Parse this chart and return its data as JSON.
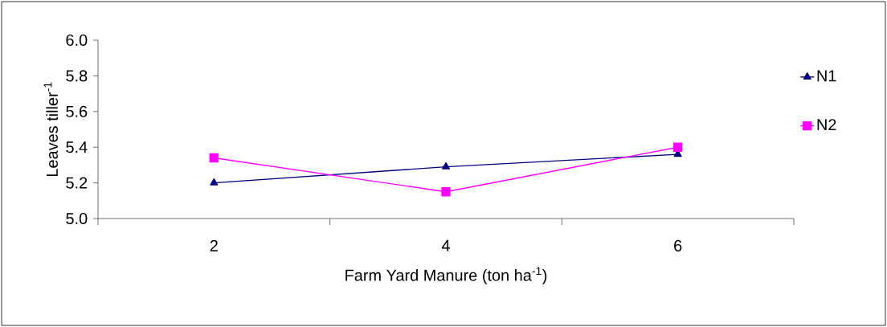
{
  "chart_data": {
    "type": "line",
    "xlabel": "Farm Yard Manure (ton ha$^{-1}$)",
    "ylabel": "Leaves tiller$^{-1}$",
    "categories": [
      "2",
      "4",
      "6"
    ],
    "series": [
      {
        "name": "N1",
        "color": "#000080",
        "marker": "triangle",
        "values": [
          5.2,
          5.29,
          5.36
        ]
      },
      {
        "name": "N2",
        "color": "#ff00ff",
        "marker": "square",
        "values": [
          5.34,
          5.15,
          5.4
        ]
      }
    ],
    "ylim": [
      5.0,
      6.0
    ],
    "yticks": [
      {
        "value": 5,
        "label": "5.0"
      },
      5.2,
      5.4,
      5.6,
      5.8,
      {
        "value": 6,
        "label": "6.0"
      }
    ],
    "grid": false,
    "legend": "right"
  }
}
